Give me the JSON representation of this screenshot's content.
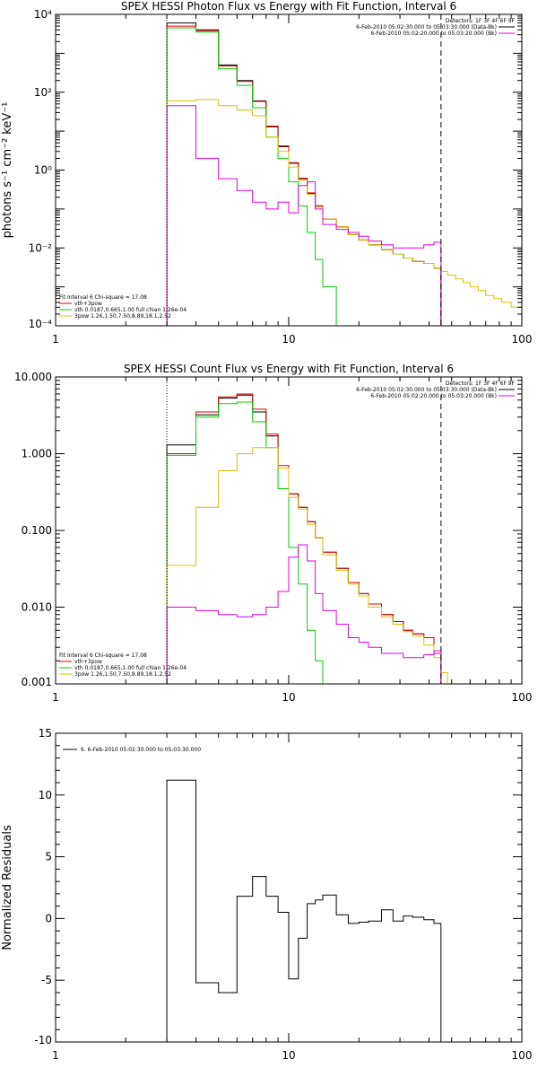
{
  "colors": {
    "black": "#000000",
    "red": "#e00000",
    "green": "#00d000",
    "yellow": "#d8c000",
    "magenta": "#e000e0"
  },
  "chart_data": [
    {
      "type": "line",
      "title": "SPEX HESSI Photon Flux vs Energy with Fit Function, Interval 6",
      "xlabel": "",
      "ylabel": "photons s⁻¹ cm⁻² keV⁻¹",
      "x_scale": "log",
      "y_scale": "log",
      "xlim": [
        1,
        100
      ],
      "ylim": [
        0.0001,
        10000
      ],
      "xticks": [
        1,
        10,
        100
      ],
      "xtick_labels": [
        "1",
        "10",
        "100"
      ],
      "yticks": [
        0.0001,
        0.01,
        1,
        100,
        10000
      ],
      "ytick_labels": [
        "10⁻⁴",
        "10⁻²",
        "10⁰",
        "10²",
        "10⁴"
      ],
      "vlines": [
        {
          "x": 3,
          "style": "dotted",
          "color": "#000000"
        },
        {
          "x": 45,
          "style": "dashed",
          "color": "#000000"
        }
      ],
      "legend_top": [
        "Detectors: 1F 3F 4F 6F 9F",
        "6-Feb-2010 05:02:30.000 to 05:03:30.000 (Data-Bk)",
        "6-Feb-2010 05:02:20.000 to 05:03:20.000 (Bk)"
      ],
      "legend_top_colors": [
        "",
        "#000000",
        "#e000e0"
      ],
      "legend_bottom": [
        "Fit Interval  6    Chi-square = 17.08",
        "vth+3pow",
        "vth  0.0187,0.665,1.00   full chian 1.26e-04",
        "3pow  1.26,1.50,7.50,8.89,18.1,2.52"
      ],
      "legend_bottom_colors": [
        "",
        "#e00000",
        "#00d000",
        "#d8c000"
      ],
      "series": [
        {
          "color": "#000000",
          "edges": [
            3,
            4,
            5,
            6,
            7,
            8,
            9,
            10,
            11,
            12,
            13,
            14,
            16,
            18,
            20,
            22,
            25,
            28,
            31,
            34,
            38,
            42,
            45
          ],
          "values": [
            6000,
            4000,
            500,
            200,
            60,
            13,
            4,
            1.5,
            0.6,
            0.25,
            0.12,
            0.055,
            0.035,
            0.022,
            0.016,
            0.012,
            0.009,
            0.007,
            0.0055,
            0.0045,
            0.004,
            0.003
          ]
        },
        {
          "color": "#e00000",
          "edges": [
            3,
            4,
            5,
            6,
            7,
            8,
            9,
            10,
            11,
            12,
            13,
            14,
            16,
            18,
            20,
            22,
            25,
            28,
            31,
            34,
            38,
            42,
            45
          ],
          "values": [
            5000,
            3800,
            470,
            190,
            58,
            13.5,
            4.2,
            1.55,
            0.62,
            0.26,
            0.12,
            0.055,
            0.035,
            0.022,
            0.016,
            0.012,
            0.009,
            0.007,
            0.0055,
            0.0045,
            0.004,
            0.003
          ]
        },
        {
          "color": "#00d000",
          "edges": [
            3,
            4,
            5,
            6,
            7,
            8,
            9,
            10,
            11,
            12,
            13,
            14,
            16
          ],
          "values": [
            4500,
            3500,
            400,
            150,
            40,
            7,
            2,
            0.5,
            0.12,
            0.025,
            0.005,
            0.001
          ]
        },
        {
          "color": "#d8c000",
          "edges": [
            3,
            4,
            5,
            6,
            7,
            8,
            9,
            10,
            11,
            12,
            13,
            14,
            16,
            18,
            20,
            22,
            25,
            28,
            31,
            34,
            38,
            42,
            45,
            48,
            52,
            56,
            60,
            65,
            70,
            76,
            82,
            90,
            100
          ],
          "values": [
            60,
            65,
            45,
            35,
            25,
            7,
            3,
            1.2,
            0.55,
            0.24,
            0.11,
            0.055,
            0.035,
            0.022,
            0.016,
            0.012,
            0.009,
            0.007,
            0.0055,
            0.0045,
            0.004,
            0.003,
            0.0025,
            0.002,
            0.0016,
            0.0013,
            0.001,
            0.0008,
            0.0006,
            0.0005,
            0.0004,
            0.0003
          ]
        },
        {
          "color": "#e000e0",
          "edges": [
            3,
            4,
            5,
            6,
            7,
            8,
            9,
            10,
            11,
            12,
            13,
            14,
            16,
            18,
            20,
            22,
            25,
            28,
            31,
            34,
            38,
            42,
            45
          ],
          "values": [
            45,
            2,
            0.6,
            0.3,
            0.15,
            0.1,
            0.15,
            0.08,
            0.4,
            0.5,
            0.1,
            0.04,
            0.03,
            0.025,
            0.02,
            0.015,
            0.012,
            0.01,
            0.01,
            0.01,
            0.012,
            0.014
          ]
        }
      ]
    },
    {
      "type": "line",
      "title": "SPEX HESSI Count Flux vs Energy with Fit Function, Interval 6",
      "xlabel": "",
      "ylabel": "",
      "x_scale": "log",
      "y_scale": "log",
      "xlim": [
        1,
        100
      ],
      "ylim": [
        0.001,
        10
      ],
      "xticks": [
        1,
        10,
        100
      ],
      "xtick_labels": [
        "1",
        "10",
        "100"
      ],
      "yticks": [
        0.001,
        0.01,
        0.1,
        1,
        10
      ],
      "ytick_labels": [
        "0.001",
        "0.010",
        "0.100",
        "1.000",
        "10.000"
      ],
      "vlines": [
        {
          "x": 3,
          "style": "dotted",
          "color": "#000000"
        },
        {
          "x": 45,
          "style": "dashed",
          "color": "#000000"
        }
      ],
      "legend_top": [
        "Detectors: 1F 3F 4F 6F 9F",
        "6-Feb-2010 05:02:30.000 to 05:03:30.000 (Data-Bk)",
        "6-Feb-2010 05:02:20.000 to 05:03:20.000 (Bk)"
      ],
      "legend_top_colors": [
        "",
        "#000000",
        "#e000e0"
      ],
      "legend_bottom": [
        "Fit Interval  6    Chi-square = 17.08",
        "vth+3pow",
        "vth  0.0187,0.665,1.00   full chian 1.26e-04",
        "3pow  1.26,1.50,7.50,8.89,18.1,2.52"
      ],
      "legend_bottom_colors": [
        "",
        "#e00000",
        "#00d000",
        "#d8c000"
      ],
      "series": [
        {
          "color": "#000000",
          "edges": [
            3,
            4,
            5,
            6,
            7,
            8,
            9,
            10,
            11,
            12,
            13,
            14,
            16,
            18,
            20,
            22,
            25,
            28,
            31,
            34,
            38,
            42,
            45
          ],
          "values": [
            1.3,
            3.2,
            5.3,
            5.8,
            3.5,
            1.7,
            0.65,
            0.3,
            0.2,
            0.13,
            0.08,
            0.052,
            0.032,
            0.021,
            0.015,
            0.011,
            0.008,
            0.0065,
            0.005,
            0.0045,
            0.004,
            0.0025
          ]
        },
        {
          "color": "#e00000",
          "edges": [
            3,
            4,
            5,
            6,
            7,
            8,
            9,
            10,
            11,
            12,
            13,
            14,
            16,
            18,
            20,
            22,
            25,
            28,
            31,
            34,
            38,
            42,
            45
          ],
          "values": [
            1.0,
            3.5,
            5.5,
            6.0,
            3.8,
            1.8,
            0.7,
            0.3,
            0.2,
            0.13,
            0.08,
            0.052,
            0.032,
            0.021,
            0.015,
            0.011,
            0.008,
            0.0065,
            0.005,
            0.0045,
            0.004,
            0.0025
          ]
        },
        {
          "color": "#00d000",
          "edges": [
            3,
            4,
            5,
            6,
            7,
            8,
            9,
            10,
            11,
            12,
            13,
            14
          ],
          "values": [
            0.95,
            3.0,
            4.5,
            4.7,
            2.6,
            1.2,
            0.35,
            0.06,
            0.02,
            0.005,
            0.002
          ]
        },
        {
          "color": "#d8c000",
          "edges": [
            3,
            4,
            5,
            6,
            7,
            8,
            9,
            10,
            11,
            12,
            13,
            14,
            16,
            18,
            20,
            22,
            25,
            28,
            31,
            34,
            38,
            42,
            45,
            48,
            52
          ],
          "values": [
            0.035,
            0.2,
            0.6,
            1.0,
            1.2,
            1.2,
            0.65,
            0.27,
            0.19,
            0.12,
            0.08,
            0.048,
            0.03,
            0.02,
            0.014,
            0.01,
            0.0075,
            0.006,
            0.0048,
            0.0042,
            0.0032,
            0.0022,
            0.0014,
            0.001
          ]
        },
        {
          "color": "#e000e0",
          "edges": [
            3,
            4,
            5,
            6,
            7,
            8,
            9,
            10,
            11,
            12,
            13,
            14,
            16,
            18,
            20,
            22,
            25,
            28,
            31,
            34,
            38,
            42,
            45
          ],
          "values": [
            0.01,
            0.009,
            0.008,
            0.0075,
            0.008,
            0.01,
            0.016,
            0.045,
            0.065,
            0.04,
            0.015,
            0.009,
            0.006,
            0.004,
            0.0035,
            0.003,
            0.0025,
            0.0025,
            0.0022,
            0.0022,
            0.0024,
            0.0027
          ]
        }
      ]
    },
    {
      "type": "line",
      "title": "",
      "xlabel": "",
      "ylabel": "Normalized Residuals",
      "x_scale": "log",
      "y_scale": "linear",
      "xlim": [
        1,
        100
      ],
      "ylim": [
        -10,
        15
      ],
      "xticks": [
        1,
        10,
        100
      ],
      "xtick_labels": [
        "1",
        "10",
        "100"
      ],
      "yticks": [
        -10,
        -5,
        0,
        5,
        10,
        15
      ],
      "ytick_labels": [
        "-10",
        "-5",
        "0",
        "5",
        "10",
        "15"
      ],
      "legend_top": [
        "6.  6-Feb-2010 05:02:30.000 to 05:03:30.000"
      ],
      "legend_top_colors": [
        "#000000"
      ],
      "series": [
        {
          "color": "#000000",
          "edges": [
            3,
            4,
            5,
            6,
            7,
            8,
            9,
            10,
            11,
            12,
            13,
            14,
            16,
            18,
            20,
            22,
            25,
            28,
            31,
            34,
            38,
            42,
            45
          ],
          "values": [
            11.2,
            -5.2,
            -6,
            1.8,
            3.4,
            1.8,
            0.5,
            -4.9,
            -1.6,
            1.2,
            1.5,
            1.9,
            0.3,
            -0.4,
            -0.3,
            -0.2,
            0.7,
            -0.2,
            0.2,
            0.1,
            -0.1,
            -0.4
          ]
        }
      ]
    }
  ]
}
